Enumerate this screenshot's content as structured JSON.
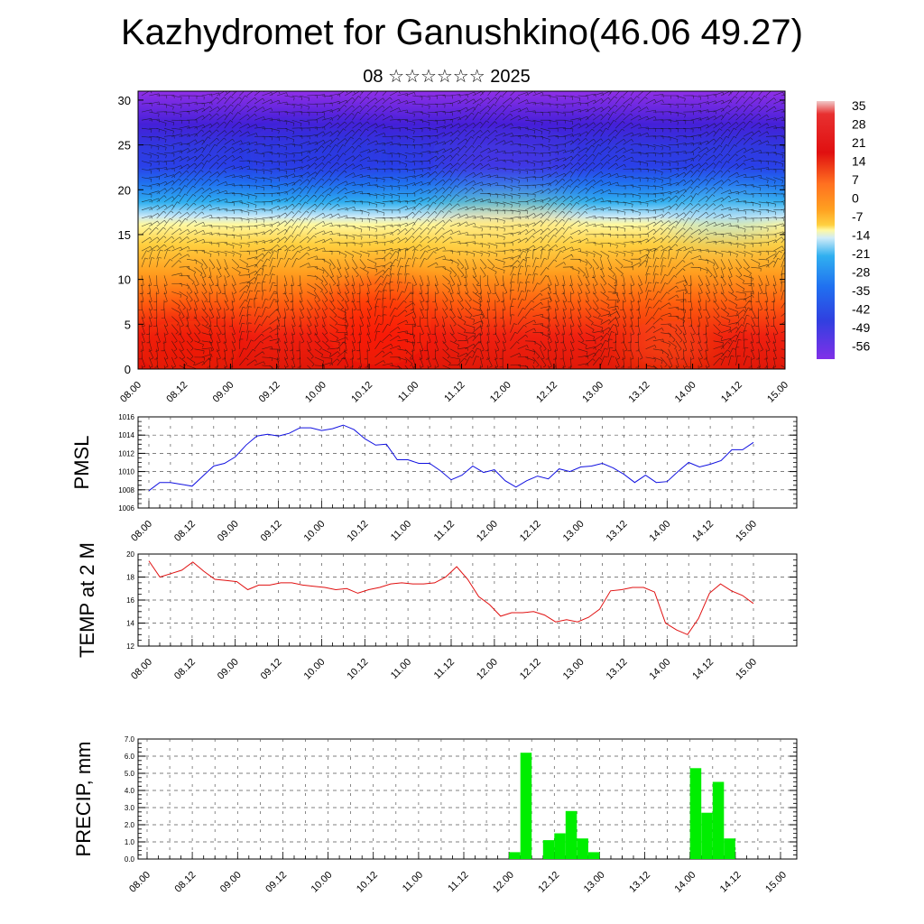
{
  "header": {
    "title": "Kazhydromet for Ganushkino(46.06 49.27)",
    "subtitle": "08 ☆☆☆☆☆☆ 2025"
  },
  "colors": {
    "pmsl_line": "#1010e0",
    "temp_line": "#e01010",
    "precip_bar": "#00ee00",
    "grid": "#555555"
  },
  "chart_data": [
    {
      "type": "heatmap",
      "title": "",
      "xlabel": "",
      "ylabel": "",
      "x_ticks": [
        "08.00",
        "08.12",
        "09.00",
        "09.12",
        "10.00",
        "10.12",
        "11.00",
        "11.12",
        "12.00",
        "12.12",
        "13.00",
        "13.12",
        "14.00",
        "14.12",
        "15.00"
      ],
      "y_ticks": [
        0,
        5,
        10,
        15,
        20,
        25,
        30
      ],
      "ylim": [
        0,
        31
      ],
      "colorbar": {
        "labels": [
          "35",
          "28",
          "21",
          "14",
          "7",
          "0",
          "-7",
          "-14",
          "-21",
          "-28",
          "-35",
          "-42",
          "-49",
          "-56"
        ]
      },
      "overlay": "wind barbs"
    },
    {
      "type": "line",
      "title": "",
      "xlabel": "",
      "ylabel": "PMSL",
      "ylim": [
        1006,
        1016
      ],
      "y_ticks": [
        1006,
        1008,
        1010,
        1012,
        1014,
        1016
      ],
      "x_ticks": [
        "08.00",
        "08.12",
        "09.00",
        "09.12",
        "10.00",
        "10.12",
        "11.00",
        "11.12",
        "12.00",
        "12.12",
        "13.00",
        "13.12",
        "14.00",
        "14.12",
        "15.00"
      ],
      "grid": true,
      "series": [
        {
          "values": [
            1007.9,
            1008.8,
            1008.8,
            1008.6,
            1008.4,
            1009.5,
            1010.6,
            1010.9,
            1011.6,
            1012.9,
            1013.9,
            1014.1,
            1013.9,
            1014.2,
            1014.8,
            1014.8,
            1014.5,
            1014.7,
            1015.1,
            1014.6,
            1013.6,
            1012.9,
            1013.0,
            1011.3,
            1011.3,
            1010.9,
            1010.9,
            1010.1,
            1009.1,
            1009.6,
            1010.6,
            1009.9,
            1010.2,
            1009.0,
            1008.3,
            1009.0,
            1009.5,
            1009.2,
            1010.3,
            1010.0,
            1010.5,
            1010.6,
            1010.9,
            1010.4,
            1009.7,
            1008.8,
            1009.6,
            1008.8,
            1008.9,
            1010.0,
            1011.0,
            1010.5,
            1010.8,
            1011.2,
            1012.4,
            1012.4,
            1013.2
          ]
        }
      ]
    },
    {
      "type": "line",
      "title": "",
      "xlabel": "",
      "ylabel": "TEMP at 2 M",
      "ylim": [
        12,
        20
      ],
      "y_ticks": [
        12,
        14,
        16,
        18,
        20
      ],
      "x_ticks": [
        "08.00",
        "08.12",
        "09.00",
        "09.12",
        "10.00",
        "10.12",
        "11.00",
        "11.12",
        "12.00",
        "12.12",
        "13.00",
        "13.12",
        "14.00",
        "14.12",
        "15.00"
      ],
      "grid": true,
      "series": [
        {
          "values": [
            19.4,
            18.0,
            18.3,
            18.6,
            19.3,
            18.5,
            17.8,
            17.7,
            17.6,
            16.9,
            17.3,
            17.3,
            17.5,
            17.5,
            17.3,
            17.2,
            17.1,
            16.9,
            17.0,
            16.6,
            16.9,
            17.1,
            17.4,
            17.5,
            17.4,
            17.4,
            17.5,
            18.0,
            18.9,
            17.8,
            16.3,
            15.6,
            14.6,
            14.9,
            14.9,
            15.0,
            14.7,
            14.1,
            14.3,
            14.1,
            14.5,
            15.2,
            16.8,
            16.9,
            17.1,
            17.1,
            16.7,
            14.0,
            13.4,
            13.0,
            14.4,
            16.6,
            17.4,
            16.8,
            16.4,
            15.7
          ]
        }
      ]
    },
    {
      "type": "bar",
      "title": "",
      "xlabel": "",
      "ylabel": "PRECIP, mm",
      "ylim": [
        0,
        7
      ],
      "y_ticks": [
        "0.0",
        "1.0",
        "2.0",
        "3.0",
        "4.0",
        "5.0",
        "6.0",
        "7.0"
      ],
      "x_ticks": [
        "08.00",
        "08.12",
        "09.00",
        "09.12",
        "10.00",
        "10.12",
        "11.00",
        "11.12",
        "12.00",
        "12.12",
        "13.00",
        "13.12",
        "14.00",
        "14.12",
        "15.00"
      ],
      "grid": true,
      "values": [
        0,
        0,
        0,
        0,
        0,
        0,
        0,
        0,
        0,
        0,
        0,
        0,
        0,
        0,
        0,
        0,
        0,
        0,
        0,
        0,
        0,
        0,
        0,
        0,
        0,
        0,
        0,
        0,
        0,
        0,
        0,
        0,
        0.4,
        6.2,
        0,
        1.1,
        1.5,
        2.8,
        1.2,
        0.4,
        0,
        0,
        0,
        0,
        0,
        0,
        0,
        0,
        5.3,
        2.7,
        4.5,
        1.2,
        0,
        0,
        0,
        0
      ]
    }
  ]
}
